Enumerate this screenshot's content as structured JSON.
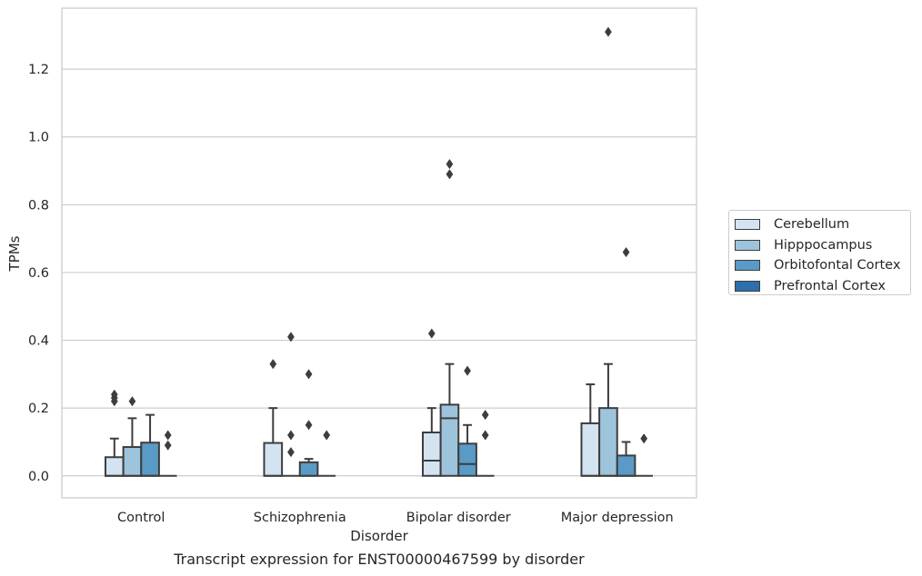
{
  "caption": "Transcript expression for ENST00000467599 by disorder",
  "chart_data": {
    "type": "box",
    "xlabel": "Disorder",
    "ylabel": "TPMs",
    "ylim": [
      -0.065,
      1.38
    ],
    "yticks": [
      "0.0",
      "0.2",
      "0.4",
      "0.6",
      "0.8",
      "1.0",
      "1.2"
    ],
    "ytick_values": [
      0.0,
      0.2,
      0.4,
      0.6,
      0.8,
      1.0,
      1.2
    ],
    "grid": "horizontal",
    "legend_position": "right",
    "categories": [
      "Control",
      "Schizophrenia",
      "Bipolar disorder",
      "Major depression"
    ],
    "series": [
      {
        "name": "Cerebellum",
        "color": "#d4e3f2",
        "boxes": [
          {
            "q1": 0.0,
            "median": 0.0,
            "q3": 0.055,
            "whislo": 0.0,
            "whishi": 0.11,
            "fliers": [
              0.22,
              0.23,
              0.24
            ]
          },
          {
            "q1": 0.0,
            "median": 0.0,
            "q3": 0.097,
            "whislo": 0.0,
            "whishi": 0.2,
            "fliers": [
              0.33
            ]
          },
          {
            "q1": 0.0,
            "median": 0.045,
            "q3": 0.128,
            "whislo": 0.0,
            "whishi": 0.2,
            "fliers": [
              0.42
            ]
          },
          {
            "q1": 0.0,
            "median": 0.0,
            "q3": 0.155,
            "whislo": 0.0,
            "whishi": 0.27,
            "fliers": []
          }
        ]
      },
      {
        "name": "Hipppocampus",
        "color": "#9ec4dc",
        "boxes": [
          {
            "q1": 0.0,
            "median": 0.0,
            "q3": 0.085,
            "whislo": 0.0,
            "whishi": 0.17,
            "fliers": [
              0.22
            ]
          },
          {
            "q1": 0.0,
            "median": 0.0,
            "q3": 0.0,
            "whislo": 0.0,
            "whishi": 0.0,
            "fliers": [
              0.07,
              0.12,
              0.41
            ]
          },
          {
            "q1": 0.0,
            "median": 0.17,
            "q3": 0.21,
            "whislo": 0.0,
            "whishi": 0.33,
            "fliers": [
              0.89,
              0.92
            ]
          },
          {
            "q1": 0.0,
            "median": 0.0,
            "q3": 0.2,
            "whislo": 0.0,
            "whishi": 0.33,
            "fliers": [
              1.31
            ]
          }
        ]
      },
      {
        "name": "Orbitofontal Cortex",
        "color": "#5a9ac6",
        "boxes": [
          {
            "q1": 0.0,
            "median": 0.0,
            "q3": 0.098,
            "whislo": 0.0,
            "whishi": 0.18,
            "fliers": []
          },
          {
            "q1": 0.0,
            "median": 0.0,
            "q3": 0.04,
            "whislo": 0.0,
            "whishi": 0.05,
            "fliers": [
              0.15,
              0.3
            ]
          },
          {
            "q1": 0.0,
            "median": 0.035,
            "q3": 0.095,
            "whislo": 0.0,
            "whishi": 0.15,
            "fliers": [
              0.31
            ]
          },
          {
            "q1": 0.0,
            "median": 0.0,
            "q3": 0.06,
            "whislo": 0.0,
            "whishi": 0.1,
            "fliers": [
              0.66
            ]
          }
        ]
      },
      {
        "name": "Prefrontal Cortex",
        "color": "#2f6ead",
        "boxes": [
          {
            "q1": 0.0,
            "median": 0.0,
            "q3": 0.0,
            "whislo": 0.0,
            "whishi": 0.0,
            "fliers": [
              0.09,
              0.12
            ]
          },
          {
            "q1": 0.0,
            "median": 0.0,
            "q3": 0.0,
            "whislo": 0.0,
            "whishi": 0.0,
            "fliers": [
              0.12
            ]
          },
          {
            "q1": 0.0,
            "median": 0.0,
            "q3": 0.0,
            "whislo": 0.0,
            "whishi": 0.0,
            "fliers": [
              0.12,
              0.18
            ]
          },
          {
            "q1": 0.0,
            "median": 0.0,
            "q3": 0.0,
            "whislo": 0.0,
            "whishi": 0.0,
            "fliers": [
              0.11
            ]
          }
        ]
      }
    ]
  }
}
